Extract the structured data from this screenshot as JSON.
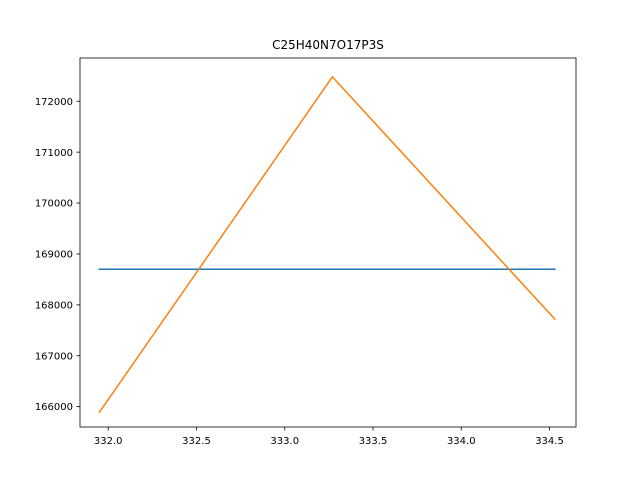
{
  "chart_data": {
    "type": "line",
    "title": "C25H40N7O17P3S",
    "xlabel": "",
    "ylabel": "",
    "xlim": [
      331.84,
      334.65
    ],
    "ylim": [
      165600,
      172850
    ],
    "xticks": [
      332.0,
      332.5,
      333.0,
      333.5,
      334.0,
      334.5
    ],
    "xtick_labels": [
      "332.0",
      "332.5",
      "333.0",
      "333.5",
      "334.0",
      "334.5"
    ],
    "yticks": [
      166000,
      167000,
      168000,
      169000,
      170000,
      171000,
      172000
    ],
    "ytick_labels": [
      "166000",
      "167000",
      "168000",
      "169000",
      "170000",
      "171000",
      "172000"
    ],
    "grid": false,
    "series": [
      {
        "color": "#1f77b4",
        "x": [
          331.95,
          334.53
        ],
        "y": [
          168700,
          168700
        ]
      },
      {
        "color": "#ff7f0e",
        "x": [
          331.95,
          333.27,
          334.53
        ],
        "y": [
          165890,
          172480,
          167720
        ]
      }
    ]
  }
}
